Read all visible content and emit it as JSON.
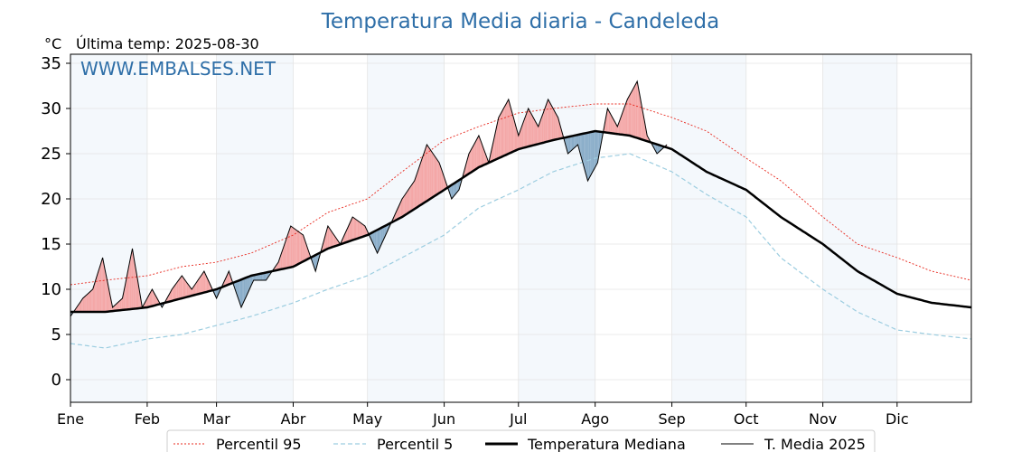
{
  "chart_data": {
    "type": "line",
    "title": "Temperatura Media diaria - Candeleda",
    "unit_label": "°C",
    "last_temp_label": "Última temp: 2025-08-30",
    "watermark": "WWW.EMBALSES.NET",
    "ylim": [
      -2.5,
      36
    ],
    "yticks": [
      0,
      5,
      10,
      15,
      20,
      25,
      30,
      35
    ],
    "months": [
      "Ene",
      "Feb",
      "Mar",
      "Abr",
      "May",
      "Jun",
      "Jul",
      "Ago",
      "Sep",
      "Oct",
      "Nov",
      "Dic"
    ],
    "grid": true,
    "legend_position": "bottom",
    "series": [
      {
        "name": "Percentil 95",
        "color": "#e8281e",
        "style": "dotted",
        "days": [
          1,
          15,
          32,
          46,
          60,
          74,
          91,
          105,
          121,
          135,
          152,
          166,
          182,
          196,
          213,
          227,
          244,
          258,
          274,
          288,
          305,
          319,
          335,
          349,
          365
        ],
        "values": [
          10.5,
          11,
          11.5,
          12.5,
          13,
          14,
          16,
          18.5,
          20,
          23,
          26.5,
          28,
          29.5,
          30,
          30.5,
          30.5,
          29,
          27.5,
          24.5,
          22,
          18,
          15,
          13.5,
          12,
          11
        ]
      },
      {
        "name": "Percentil 5",
        "color": "#9ccde0",
        "style": "dashed",
        "days": [
          1,
          15,
          32,
          46,
          60,
          74,
          91,
          105,
          121,
          135,
          152,
          166,
          182,
          196,
          213,
          227,
          244,
          258,
          274,
          288,
          305,
          319,
          335,
          349,
          365
        ],
        "values": [
          4,
          3.5,
          4.5,
          5,
          6,
          7,
          8.5,
          10,
          11.5,
          13.5,
          16,
          19,
          21,
          23,
          24.5,
          25,
          23,
          20.5,
          18,
          13.5,
          10,
          7.5,
          5.5,
          5,
          4.5
        ]
      },
      {
        "name": "Temperatura Mediana",
        "color": "#000000",
        "style": "thick",
        "days": [
          1,
          15,
          32,
          46,
          60,
          74,
          91,
          105,
          121,
          135,
          152,
          166,
          182,
          196,
          213,
          227,
          244,
          258,
          274,
          288,
          305,
          319,
          335,
          349,
          365
        ],
        "values": [
          7.5,
          7.5,
          8,
          9,
          10,
          11.5,
          12.5,
          14.5,
          16,
          18,
          21,
          23.5,
          25.5,
          26.5,
          27.5,
          27,
          25.5,
          23,
          21,
          18,
          15,
          12,
          9.5,
          8.5,
          8
        ]
      },
      {
        "name": "T. Media 2025",
        "color": "#000000",
        "style": "thin",
        "days": [
          1,
          6,
          10,
          14,
          18,
          22,
          26,
          30,
          34,
          38,
          42,
          46,
          50,
          55,
          60,
          65,
          70,
          75,
          80,
          85,
          90,
          95,
          100,
          105,
          110,
          115,
          120,
          125,
          130,
          135,
          140,
          145,
          150,
          155,
          158,
          162,
          166,
          170,
          174,
          178,
          182,
          186,
          190,
          194,
          198,
          202,
          206,
          210,
          214,
          218,
          222,
          226,
          230,
          234,
          238,
          242
        ],
        "values": [
          7,
          9,
          10,
          13.5,
          8,
          9,
          14.5,
          8,
          10,
          8,
          10,
          11.5,
          10,
          12,
          9,
          12,
          8,
          11,
          11,
          13,
          17,
          16,
          12,
          17,
          15,
          18,
          17,
          14,
          17,
          20,
          22,
          26,
          24,
          20,
          21,
          25,
          27,
          24,
          29,
          31,
          27,
          30,
          28,
          31,
          29,
          25,
          26,
          22,
          24,
          30,
          28,
          31,
          33,
          27,
          25,
          26
        ]
      }
    ]
  }
}
